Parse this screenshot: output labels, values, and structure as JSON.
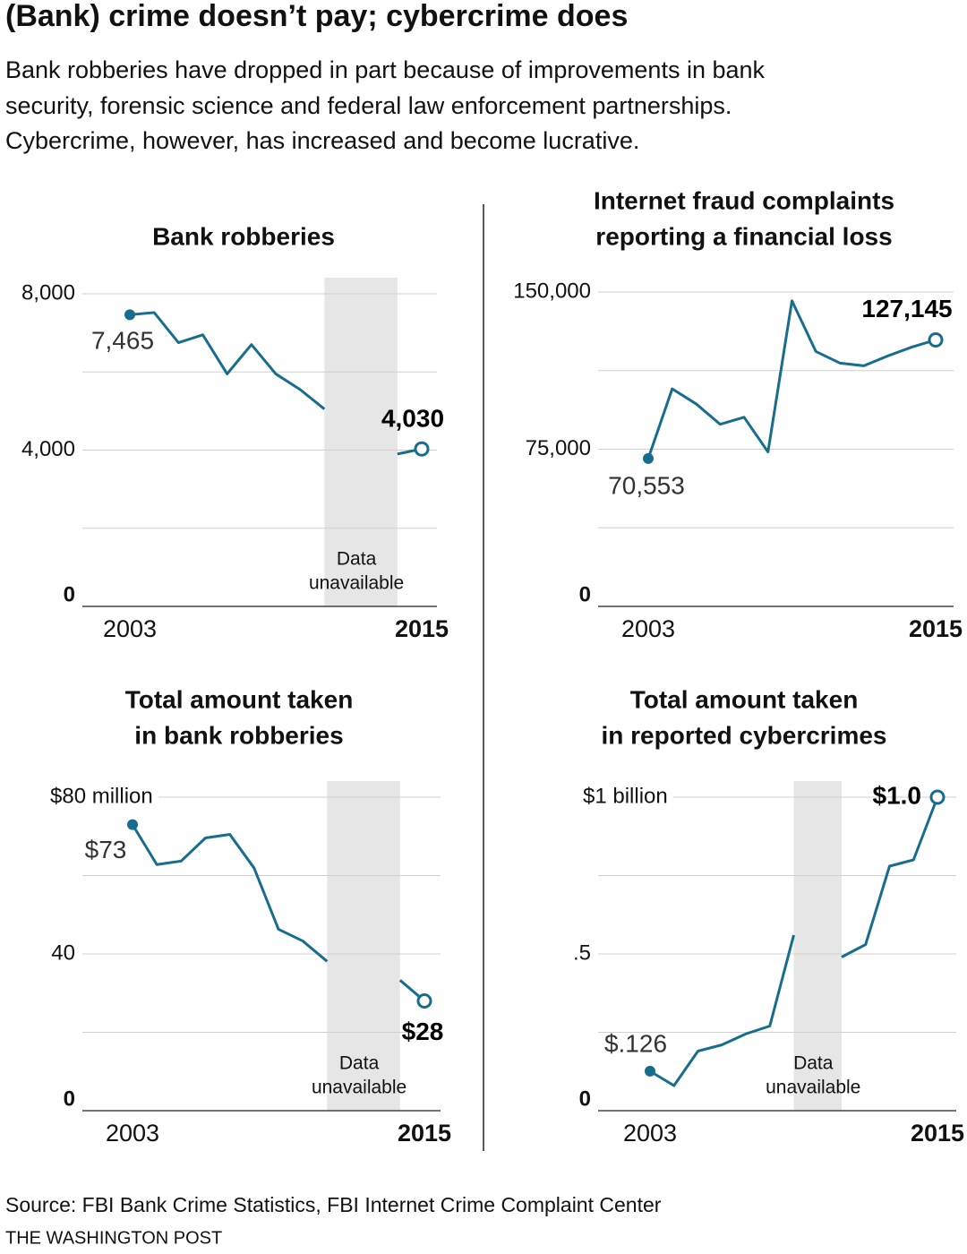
{
  "title": "(Bank) crime doesn’t pay; cybercrime does",
  "subtitle": [
    "Bank robberies have dropped in part because of improvements in bank",
    "security, forensic science and federal law enforcement partnerships.",
    "Cybercrime, however, has increased and become lucrative."
  ],
  "chart_data": [
    {
      "type": "line",
      "title": [
        "Bank robberies"
      ],
      "x": [
        2003,
        2004,
        2005,
        2006,
        2007,
        2008,
        2009,
        2010,
        2011,
        2012,
        2013,
        2014,
        2015
      ],
      "xlim": [
        2003,
        2015
      ],
      "xticks": [
        2003,
        2015
      ],
      "values": [
        7465,
        7520,
        6750,
        6950,
        5950,
        6700,
        5950,
        5550,
        5050,
        null,
        null,
        3900,
        4030
      ],
      "value_labels": [
        "7,465",
        null,
        null,
        null,
        null,
        null,
        null,
        null,
        null,
        null,
        null,
        null,
        "4,030"
      ],
      "color": "#176d8c",
      "ylim": [
        0,
        8000
      ],
      "yticks": [
        0,
        {
          "value": 4000,
          "label": "4,000"
        },
        {
          "value": 8000,
          "label": "8,000"
        }
      ],
      "minor_gridlines": [
        2000,
        6000
      ],
      "unavailable": {
        "range": [
          2011,
          2014
        ],
        "label": [
          "Data",
          "unavailable"
        ]
      }
    },
    {
      "type": "line",
      "title": [
        "Internet fraud complaints",
        "reporting a financial loss"
      ],
      "x": [
        2003,
        2004,
        2005,
        2006,
        2007,
        2008,
        2009,
        2010,
        2011,
        2012,
        2013,
        2014,
        2015
      ],
      "xlim": [
        2003,
        2015
      ],
      "xticks": [
        2003,
        2015
      ],
      "values": [
        70553,
        103800,
        96600,
        86900,
        90250,
        73700,
        145800,
        121600,
        116100,
        114800,
        119500,
        123700,
        127145
      ],
      "value_labels": [
        "70,553",
        null,
        null,
        null,
        null,
        null,
        null,
        null,
        null,
        null,
        null,
        null,
        "127,145"
      ],
      "color": "#176d8c",
      "ylim": [
        0,
        150000
      ],
      "yticks": [
        0,
        {
          "value": 75000,
          "label": "75,000"
        },
        {
          "value": 150000,
          "label": "150,000"
        }
      ],
      "minor_gridlines": [
        37500,
        112500
      ]
    },
    {
      "type": "line",
      "title": [
        "Total amount taken",
        "in bank robberies"
      ],
      "x": [
        2003,
        2004,
        2005,
        2006,
        2007,
        2008,
        2009,
        2010,
        2011,
        2012,
        2013,
        2014,
        2015
      ],
      "xlim": [
        2003,
        2015
      ],
      "xticks": [
        2003,
        2015
      ],
      "values": [
        73,
        62.8,
        63.7,
        69.6,
        70.5,
        61.9,
        46.3,
        43.3,
        38.1,
        null,
        null,
        33.3,
        28
      ],
      "value_labels": [
        "$73",
        null,
        null,
        null,
        null,
        null,
        null,
        null,
        null,
        null,
        null,
        null,
        "$28"
      ],
      "color": "#176d8c",
      "ylim": [
        0,
        80
      ],
      "yticks": [
        0,
        40,
        {
          "value": 80,
          "label": "$80 million"
        }
      ],
      "minor_gridlines": [
        20,
        60
      ],
      "unavailable": {
        "range": [
          2011,
          2014
        ],
        "label": [
          "Data",
          "unavailable"
        ]
      }
    },
    {
      "type": "line",
      "title": [
        "Total amount taken",
        "in reported cybercrimes"
      ],
      "x": [
        2003,
        2004,
        2005,
        2006,
        2007,
        2008,
        2009,
        2010,
        2011,
        2012,
        2013,
        2014,
        2015
      ],
      "xlim": [
        2003,
        2015
      ],
      "xticks": [
        2003,
        2015
      ],
      "values": [
        0.126,
        0.08,
        0.19,
        0.21,
        0.245,
        0.27,
        0.56,
        null,
        0.49,
        0.53,
        0.78,
        0.8,
        1.0
      ],
      "value_labels": [
        "$.126",
        null,
        null,
        null,
        null,
        null,
        null,
        null,
        null,
        null,
        null,
        null,
        "$1.0"
      ],
      "color": "#176d8c",
      "ylim": [
        0,
        1
      ],
      "yticks": [
        0,
        {
          "value": 0.5,
          "label": ".5"
        },
        {
          "value": 1,
          "label": "$1 billion"
        }
      ],
      "minor_gridlines": [
        0.25,
        0.75
      ],
      "unavailable": {
        "range": [
          2009,
          2011
        ],
        "label": [
          "Data",
          "unavailable"
        ]
      }
    }
  ],
  "source": "Source: FBI Bank Crime Statistics, FBI Internet Crime Complaint Center",
  "credit": "THE WASHINGTON POST"
}
